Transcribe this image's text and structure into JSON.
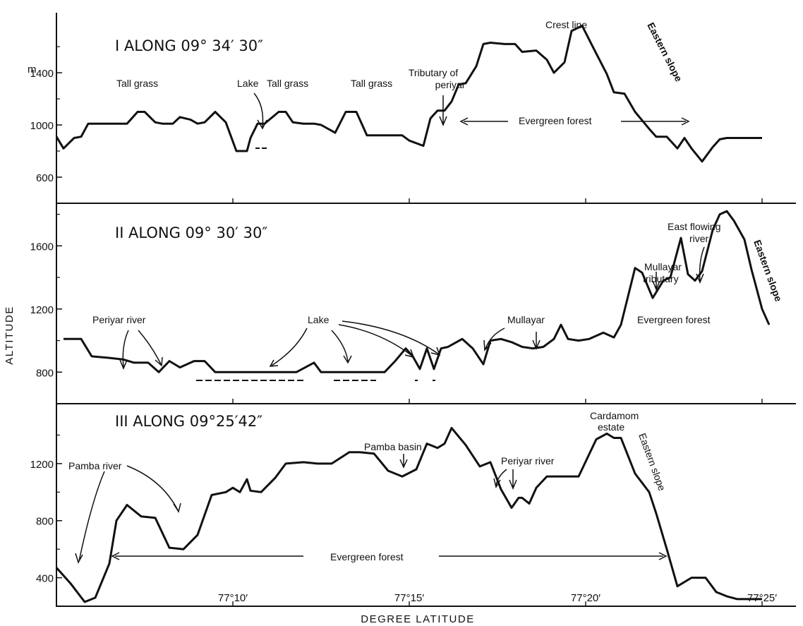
{
  "chart_data": {
    "type": "line",
    "xlabel": "DEGREE LATITUDE",
    "ylabel": "ALTITUDE",
    "x_ticks": [
      {
        "value": 10,
        "label": "77°10′"
      },
      {
        "value": 15,
        "label": "77°15′"
      },
      {
        "value": 20,
        "label": "77°20′"
      },
      {
        "value": 25,
        "label": "77°25′"
      }
    ],
    "xlim": [
      5,
      26
    ],
    "panels": [
      {
        "id": "panel-1",
        "title": "I ALONG 09° 34′ 30″",
        "ylim": [
          400,
          1860
        ],
        "y_ticks": [
          {
            "value": 600,
            "label": "600"
          },
          {
            "value": 1000,
            "label": "1000"
          },
          {
            "value": 1400,
            "label": "1400"
          }
        ],
        "y_unit": "m",
        "series": [
          {
            "x": [
              5.0,
              5.2,
              5.5,
              5.7,
              5.9,
              6.1,
              6.5,
              7.0,
              7.3,
              7.5,
              7.8,
              8.0,
              8.3,
              8.5,
              8.8,
              9.0,
              9.2,
              9.5,
              9.8,
              10.1,
              10.3,
              10.4,
              10.5,
              10.7,
              10.9,
              11.3,
              11.5,
              11.7,
              12.0,
              12.3,
              12.5,
              12.9,
              13.2,
              13.5,
              13.8,
              14.1,
              14.3,
              14.6,
              14.8,
              15.0,
              15.4,
              15.6,
              15.8,
              16.0,
              16.2,
              16.4,
              16.6,
              16.9,
              17.1,
              17.3,
              17.7,
              18.0,
              18.2,
              18.6,
              18.9,
              19.1,
              19.4,
              19.6,
              19.9,
              20.2,
              20.6,
              20.8,
              21.1,
              21.4,
              21.8,
              22.0,
              22.3,
              22.6,
              22.8,
              23.0,
              23.3,
              23.6,
              23.8,
              24.0,
              24.3,
              24.5,
              24.7,
              25.0
            ],
            "y": [
              910,
              820,
              900,
              910,
              1010,
              1010,
              1010,
              1010,
              1100,
              1100,
              1020,
              1010,
              1010,
              1060,
              1040,
              1010,
              1020,
              1100,
              1020,
              800,
              800,
              800,
              900,
              1010,
              1010,
              1100,
              1100,
              1020,
              1010,
              1010,
              1000,
              940,
              1100,
              1100,
              920,
              920,
              920,
              920,
              920,
              880,
              840,
              1050,
              1110,
              1110,
              1180,
              1310,
              1320,
              1450,
              1620,
              1630,
              1620,
              1620,
              1560,
              1570,
              1500,
              1400,
              1480,
              1720,
              1760,
              1600,
              1390,
              1250,
              1240,
              1100,
              970,
              910,
              910,
              820,
              900,
              820,
              720,
              830,
              890,
              900,
              900,
              900,
              900,
              900
            ]
          }
        ],
        "annotations": [
          {
            "text": "Tall grass"
          },
          {
            "text": "Lake"
          },
          {
            "text": "Tall grass"
          },
          {
            "text": "Tall grass"
          },
          {
            "text": "Tributary of"
          },
          {
            "text": "periyar"
          },
          {
            "text": "Crest line"
          },
          {
            "text": "Eastern slope"
          },
          {
            "text": "Evergreen forest"
          }
        ]
      },
      {
        "id": "panel-2",
        "title": "II ALONG 09° 30′ 30″",
        "ylim": [
          600,
          1870
        ],
        "y_ticks": [
          {
            "value": 800,
            "label": "800"
          },
          {
            "value": 1200,
            "label": "1200"
          },
          {
            "value": 1600,
            "label": "1600"
          }
        ],
        "series": [
          {
            "x": [
              5.2,
              5.7,
              6.0,
              6.5,
              6.9,
              7.2,
              7.6,
              7.9,
              8.2,
              8.5,
              8.9,
              9.2,
              9.5,
              10.0,
              10.4,
              10.9,
              11.3,
              11.8,
              12.3,
              12.5,
              12.8,
              13.0,
              13.3,
              13.7,
              14.0,
              14.3,
              14.6,
              14.9,
              15.1,
              15.3,
              15.5,
              15.7,
              15.9,
              16.1,
              16.5,
              16.8,
              17.1,
              17.3,
              17.6,
              17.9,
              18.2,
              18.5,
              18.8,
              19.1,
              19.3,
              19.5,
              19.8,
              20.1,
              20.5,
              20.8,
              21.0,
              21.4,
              21.6,
              21.9,
              22.2,
              22.4,
              22.7,
              22.9,
              23.1,
              23.3,
              23.6,
              23.8,
              24.0,
              24.2,
              24.5,
              24.7,
              25.0,
              25.2
            ],
            "y": [
              1010,
              1010,
              900,
              890,
              880,
              860,
              860,
              800,
              870,
              830,
              870,
              870,
              800,
              800,
              800,
              800,
              800,
              800,
              860,
              800,
              800,
              800,
              800,
              800,
              800,
              800,
              870,
              950,
              900,
              820,
              950,
              820,
              950,
              960,
              1010,
              950,
              850,
              1000,
              1010,
              990,
              960,
              950,
              960,
              1010,
              1100,
              1010,
              1000,
              1010,
              1050,
              1020,
              1100,
              1460,
              1430,
              1270,
              1380,
              1400,
              1650,
              1420,
              1380,
              1440,
              1700,
              1800,
              1820,
              1760,
              1640,
              1450,
              1200,
              1100
            ]
          }
        ],
        "annotations": [
          {
            "text": "Periyar river"
          },
          {
            "text": "Lake"
          },
          {
            "text": "Mullayar"
          },
          {
            "text": "Mullayar"
          },
          {
            "text": "tributary"
          },
          {
            "text": "East flowing"
          },
          {
            "text": "river"
          },
          {
            "text": "Eastern slope"
          },
          {
            "text": "Evergreen forest"
          }
        ]
      },
      {
        "id": "panel-3",
        "title": "III ALONG 09°25′42″",
        "ylim": [
          200,
          1620
        ],
        "y_ticks": [
          {
            "value": 400,
            "label": "400"
          },
          {
            "value": 800,
            "label": "800"
          },
          {
            "value": 1200,
            "label": "1200"
          }
        ],
        "series": [
          {
            "x": [
              5.0,
              5.4,
              5.8,
              6.1,
              6.5,
              6.7,
              7.0,
              7.4,
              7.8,
              8.2,
              8.6,
              9.0,
              9.4,
              9.8,
              10.0,
              10.2,
              10.4,
              10.5,
              10.8,
              11.2,
              11.5,
              12.0,
              12.4,
              12.8,
              13.3,
              13.6,
              14.0,
              14.4,
              14.8,
              15.2,
              15.5,
              15.8,
              16.0,
              16.2,
              16.6,
              17.0,
              17.3,
              17.6,
              17.9,
              18.1,
              18.2,
              18.4,
              18.6,
              18.9,
              19.3,
              19.8,
              20.3,
              20.6,
              20.8,
              21.0,
              21.4,
              21.8,
              22.0,
              22.3,
              22.6,
              23.0,
              23.4,
              23.7,
              24.0,
              24.3,
              24.6,
              25.0
            ],
            "y": [
              470,
              360,
              230,
              260,
              500,
              800,
              910,
              830,
              820,
              610,
              600,
              700,
              980,
              1000,
              1030,
              1000,
              1090,
              1010,
              1000,
              1100,
              1200,
              1210,
              1200,
              1200,
              1280,
              1280,
              1270,
              1150,
              1110,
              1160,
              1340,
              1310,
              1340,
              1450,
              1330,
              1180,
              1210,
              1020,
              890,
              960,
              960,
              920,
              1030,
              1110,
              1110,
              1110,
              1370,
              1410,
              1380,
              1380,
              1130,
              1000,
              850,
              600,
              340,
              400,
              400,
              300,
              270,
              250,
              250,
              250
            ]
          }
        ],
        "annotations": [
          {
            "text": "Pamba river"
          },
          {
            "text": "Pamba basin"
          },
          {
            "text": "Periyar river"
          },
          {
            "text": "Cardamom"
          },
          {
            "text": "estate"
          },
          {
            "text": "Eastern slope"
          },
          {
            "text": "Evergreen forest"
          }
        ]
      }
    ]
  }
}
